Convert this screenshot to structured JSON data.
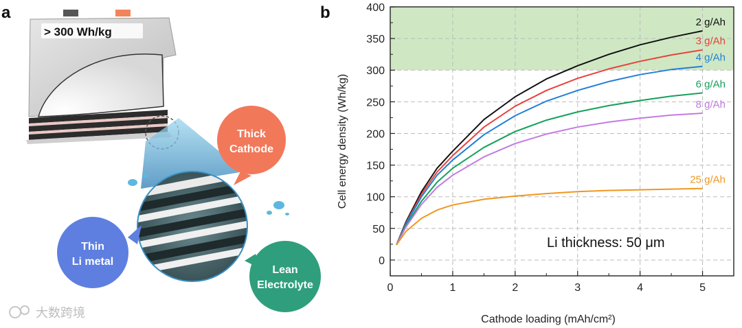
{
  "panels": {
    "a": "a",
    "b": "b"
  },
  "illustration": {
    "badge_text": "> 300 Wh/kg",
    "bubbles": {
      "cathode": {
        "lines": [
          "Thick",
          "Cathode"
        ],
        "color": "#f2785a"
      },
      "li_metal": {
        "lines": [
          "Thin",
          "Li metal"
        ],
        "color": "#5e7fe0"
      },
      "electrolyte": {
        "lines": [
          "Lean",
          "Electrolyte"
        ],
        "color": "#2f9e7c"
      }
    }
  },
  "watermark": "大数跨境",
  "chart_data": {
    "type": "line",
    "title": "",
    "xlabel": "Cathode loading (mAh/cm²)",
    "ylabel": "Cell energy density (Wh/kg)",
    "xlim": [
      0,
      5.5
    ],
    "ylim": [
      -25,
      400
    ],
    "x_ticks": [
      0,
      1,
      2,
      3,
      4,
      5
    ],
    "y_ticks": [
      0,
      50,
      100,
      150,
      200,
      250,
      300,
      350,
      400
    ],
    "grid": "dashed",
    "highlight_band": {
      "y_from": 300,
      "y_to": 400,
      "color": "#cfe8c3"
    },
    "annotation": "Li thickness: 50 μm",
    "x": [
      0.1,
      0.25,
      0.5,
      0.75,
      1.0,
      1.5,
      2.0,
      2.5,
      3.0,
      3.5,
      4.0,
      4.5,
      5.0
    ],
    "series": [
      {
        "name": "2 g/Ah",
        "color": "#111111",
        "values": [
          24,
          60,
          108,
          145,
          172,
          222,
          258,
          286,
          307,
          325,
          340,
          352,
          362
        ]
      },
      {
        "name": "3 g/Ah",
        "color": "#e8413c",
        "values": [
          24,
          58,
          104,
          139,
          165,
          210,
          243,
          268,
          287,
          302,
          314,
          324,
          332
        ]
      },
      {
        "name": "4 g/Ah",
        "color": "#1f7fd6",
        "values": [
          24,
          57,
          100,
          134,
          158,
          198,
          228,
          251,
          268,
          282,
          293,
          301,
          306
        ]
      },
      {
        "name": "6 g/Ah",
        "color": "#14a05a",
        "values": [
          24,
          54,
          93,
          123,
          145,
          178,
          203,
          221,
          234,
          244,
          252,
          259,
          264
        ]
      },
      {
        "name": "8 g/Ah",
        "color": "#c27be0",
        "values": [
          24,
          52,
          88,
          115,
          134,
          163,
          184,
          199,
          210,
          218,
          224,
          229,
          232
        ]
      },
      {
        "name": "25 g/Ah",
        "color": "#f0961e",
        "values": [
          24,
          45,
          66,
          79,
          87,
          96,
          101,
          105,
          108,
          110,
          111,
          112,
          113
        ]
      }
    ]
  }
}
